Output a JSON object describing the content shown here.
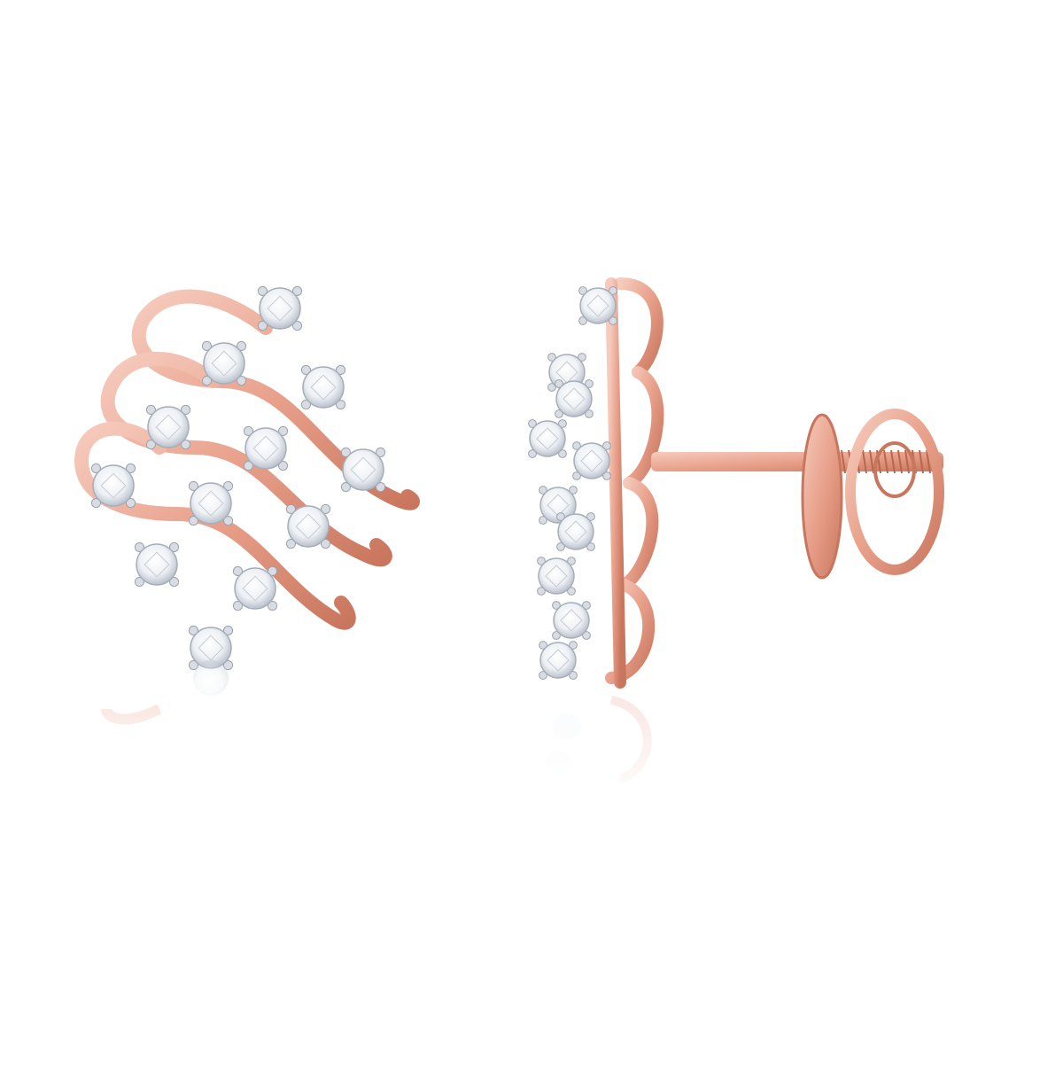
{
  "colors": {
    "background": "#ffffff",
    "rose_gold": "#e8a08a",
    "rose_gold_dark": "#c9765e",
    "rose_gold_light": "#f6cbbd",
    "diamond": "#eef1f5",
    "diamond_shadow": "#b9c0cb",
    "prong": "#d9dde3"
  },
  "scene": {
    "items": [
      {
        "name": "earring-front-view",
        "kind": "stud earring, front view",
        "stones": 12,
        "bands": 3
      },
      {
        "name": "earring-side-view",
        "kind": "stud earring, side view with screw post",
        "has_screw_back": true
      }
    ]
  }
}
